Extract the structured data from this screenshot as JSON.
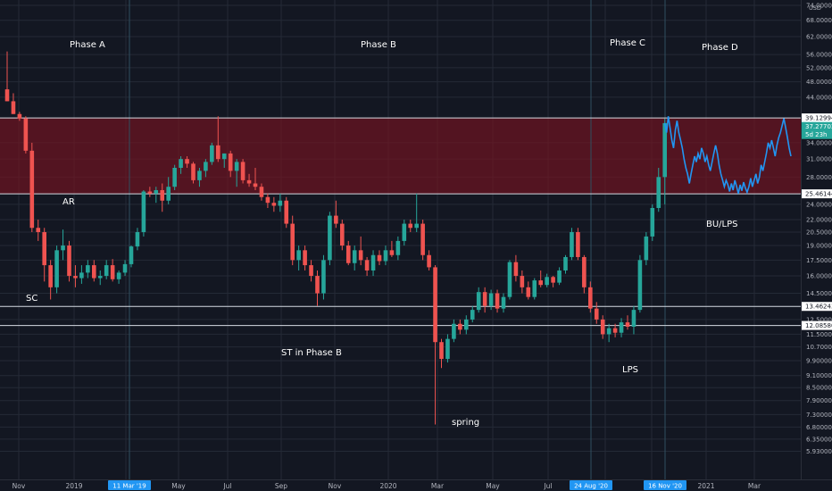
{
  "chart_data": {
    "type": "candlestick",
    "currency": "USD",
    "colors": {
      "up": "#26a69a",
      "down": "#ef5350",
      "line_series": "#2196f3",
      "resistance_zone": "#7a1420",
      "date_marker": "#2196f3"
    },
    "ylim": [
      5.4,
      74
    ],
    "y_scale": "log",
    "yticks": [
      "74.000000",
      "68.000000",
      "62.000000",
      "56.000000",
      "52.000000",
      "48.000000",
      "44.000000",
      "39.129947",
      "37.277021",
      "34.000000",
      "31.000000",
      "28.000000",
      "25.461444",
      "24.000000",
      "22.000000",
      "20.500000",
      "19.000000",
      "17.500000",
      "16.000000",
      "14.500000",
      "13.462438",
      "12.500000",
      "12.085800",
      "11.500000",
      "10.700000",
      "9.900000",
      "9.100000",
      "8.500000",
      "7.900000",
      "7.300000",
      "6.800000",
      "6.350000",
      "5.930000"
    ],
    "xticks": [
      "Nov",
      "2019",
      "Mar",
      "May",
      "Jul",
      "Sep",
      "Nov",
      "2020",
      "Mar",
      "May",
      "Jul",
      "Sep",
      "Nov",
      "2021",
      "Mar"
    ],
    "date_markers": [
      "11 Mar '19",
      "24 Aug '20",
      "16 Nov '20"
    ],
    "horizontal_levels": [
      {
        "value": 39.129947,
        "label": "39.129947"
      },
      {
        "value": 25.461444,
        "label": "25.461444"
      },
      {
        "value": 13.462438,
        "label": "13.462438"
      },
      {
        "value": 12.0858,
        "label": "12.085800"
      }
    ],
    "resistance_zone": [
      25.461444,
      39.129947
    ],
    "current_price": {
      "value": 37.277021,
      "label": "37.277021",
      "countdown": "5d 23h"
    },
    "annotations": [
      "Phase A",
      "Phase B",
      "Phase C",
      "Phase D",
      "AR",
      "SC",
      "ST in Phase B",
      "spring",
      "LPS",
      "BU/LPS"
    ],
    "candles": [
      {
        "o": 46.0,
        "h": 57.0,
        "l": 43.0,
        "c": 43.0
      },
      {
        "o": 43.0,
        "h": 45.0,
        "l": 40.0,
        "c": 40.0
      },
      {
        "o": 40.0,
        "h": 40.5,
        "l": 38.5,
        "c": 39.0
      },
      {
        "o": 39.0,
        "h": 39.5,
        "l": 32.0,
        "c": 32.5
      },
      {
        "o": 32.5,
        "h": 34.0,
        "l": 20.5,
        "c": 21.0
      },
      {
        "o": 21.0,
        "h": 22.0,
        "l": 19.5,
        "c": 20.5
      },
      {
        "o": 20.5,
        "h": 21.0,
        "l": 15.5,
        "c": 17.0
      },
      {
        "o": 17.0,
        "h": 17.5,
        "l": 14.0,
        "c": 15.0
      },
      {
        "o": 15.0,
        "h": 19.0,
        "l": 14.5,
        "c": 18.5
      },
      {
        "o": 18.5,
        "h": 20.8,
        "l": 17.5,
        "c": 19.0
      },
      {
        "o": 19.0,
        "h": 19.5,
        "l": 15.5,
        "c": 16.0
      },
      {
        "o": 16.0,
        "h": 17.0,
        "l": 15.0,
        "c": 15.8
      },
      {
        "o": 15.8,
        "h": 17.0,
        "l": 15.3,
        "c": 16.3
      },
      {
        "o": 16.3,
        "h": 17.5,
        "l": 15.8,
        "c": 17.0
      },
      {
        "o": 17.0,
        "h": 17.5,
        "l": 15.5,
        "c": 15.8
      },
      {
        "o": 15.8,
        "h": 16.5,
        "l": 15.2,
        "c": 16.0
      },
      {
        "o": 16.0,
        "h": 17.5,
        "l": 15.7,
        "c": 17.0
      },
      {
        "o": 17.0,
        "h": 17.6,
        "l": 15.5,
        "c": 15.7
      },
      {
        "o": 15.7,
        "h": 16.5,
        "l": 15.3,
        "c": 16.3
      },
      {
        "o": 16.3,
        "h": 17.5,
        "l": 16.0,
        "c": 17.1
      },
      {
        "o": 17.1,
        "h": 19.0,
        "l": 16.8,
        "c": 18.9
      },
      {
        "o": 18.9,
        "h": 21.0,
        "l": 18.5,
        "c": 20.5
      },
      {
        "o": 20.5,
        "h": 26.0,
        "l": 20.0,
        "c": 25.8
      },
      {
        "o": 25.8,
        "h": 26.5,
        "l": 25.0,
        "c": 25.5
      },
      {
        "o": 25.5,
        "h": 26.5,
        "l": 24.2,
        "c": 26.0
      },
      {
        "o": 26.0,
        "h": 27.0,
        "l": 23.0,
        "c": 24.5
      },
      {
        "o": 24.5,
        "h": 28.0,
        "l": 24.0,
        "c": 26.5
      },
      {
        "o": 26.5,
        "h": 30.0,
        "l": 26.0,
        "c": 29.5
      },
      {
        "o": 29.5,
        "h": 31.5,
        "l": 28.5,
        "c": 31.0
      },
      {
        "o": 31.0,
        "h": 31.5,
        "l": 29.5,
        "c": 30.2
      },
      {
        "o": 30.2,
        "h": 30.5,
        "l": 27.0,
        "c": 27.5
      },
      {
        "o": 27.5,
        "h": 29.5,
        "l": 26.5,
        "c": 29.0
      },
      {
        "o": 29.0,
        "h": 31.0,
        "l": 28.0,
        "c": 30.5
      },
      {
        "o": 30.5,
        "h": 34.0,
        "l": 30.0,
        "c": 33.5
      },
      {
        "o": 33.5,
        "h": 39.5,
        "l": 30.5,
        "c": 31.0
      },
      {
        "o": 31.0,
        "h": 32.0,
        "l": 29.5,
        "c": 32.0
      },
      {
        "o": 32.0,
        "h": 32.5,
        "l": 28.0,
        "c": 29.0
      },
      {
        "o": 29.0,
        "h": 31.0,
        "l": 26.5,
        "c": 30.5
      },
      {
        "o": 30.5,
        "h": 31.0,
        "l": 27.0,
        "c": 27.5
      },
      {
        "o": 27.5,
        "h": 28.5,
        "l": 26.5,
        "c": 27.0
      },
      {
        "o": 27.0,
        "h": 29.5,
        "l": 26.0,
        "c": 26.5
      },
      {
        "o": 26.5,
        "h": 27.0,
        "l": 24.5,
        "c": 25.0
      },
      {
        "o": 25.0,
        "h": 25.5,
        "l": 23.5,
        "c": 24.2
      },
      {
        "o": 24.2,
        "h": 25.0,
        "l": 23.0,
        "c": 23.8
      },
      {
        "o": 23.8,
        "h": 25.5,
        "l": 23.0,
        "c": 24.5
      },
      {
        "o": 24.5,
        "h": 25.0,
        "l": 21.0,
        "c": 21.5
      },
      {
        "o": 21.5,
        "h": 22.5,
        "l": 17.0,
        "c": 17.5
      },
      {
        "o": 17.5,
        "h": 19.0,
        "l": 16.5,
        "c": 18.5
      },
      {
        "o": 18.5,
        "h": 19.0,
        "l": 16.5,
        "c": 17.0
      },
      {
        "o": 17.0,
        "h": 17.5,
        "l": 15.5,
        "c": 16.0
      },
      {
        "o": 16.0,
        "h": 16.5,
        "l": 13.5,
        "c": 14.5
      },
      {
        "o": 14.5,
        "h": 18.0,
        "l": 14.0,
        "c": 17.5
      },
      {
        "o": 17.5,
        "h": 23.0,
        "l": 17.0,
        "c": 22.5
      },
      {
        "o": 22.5,
        "h": 24.5,
        "l": 21.0,
        "c": 21.5
      },
      {
        "o": 21.5,
        "h": 22.0,
        "l": 18.5,
        "c": 19.0
      },
      {
        "o": 19.0,
        "h": 19.5,
        "l": 17.0,
        "c": 17.2
      },
      {
        "o": 17.2,
        "h": 19.0,
        "l": 16.5,
        "c": 18.5
      },
      {
        "o": 18.5,
        "h": 20.0,
        "l": 17.0,
        "c": 17.5
      },
      {
        "o": 17.5,
        "h": 17.8,
        "l": 16.0,
        "c": 16.5
      },
      {
        "o": 16.5,
        "h": 18.5,
        "l": 16.0,
        "c": 18.0
      },
      {
        "o": 18.0,
        "h": 18.5,
        "l": 17.0,
        "c": 17.4
      },
      {
        "o": 17.4,
        "h": 19.0,
        "l": 17.0,
        "c": 18.5
      },
      {
        "o": 18.5,
        "h": 19.5,
        "l": 17.8,
        "c": 18.0
      },
      {
        "o": 18.0,
        "h": 20.0,
        "l": 17.5,
        "c": 19.5
      },
      {
        "o": 19.5,
        "h": 22.0,
        "l": 19.0,
        "c": 21.5
      },
      {
        "o": 21.5,
        "h": 22.0,
        "l": 20.5,
        "c": 21.0
      },
      {
        "o": 21.0,
        "h": 25.5,
        "l": 20.5,
        "c": 21.5
      },
      {
        "o": 21.5,
        "h": 22.0,
        "l": 17.5,
        "c": 18.0
      },
      {
        "o": 18.0,
        "h": 18.5,
        "l": 16.5,
        "c": 16.8
      },
      {
        "o": 16.8,
        "h": 17.0,
        "l": 6.9,
        "c": 11.0
      },
      {
        "o": 11.0,
        "h": 11.2,
        "l": 9.5,
        "c": 10.0
      },
      {
        "o": 10.0,
        "h": 11.5,
        "l": 9.8,
        "c": 11.2
      },
      {
        "o": 11.2,
        "h": 12.5,
        "l": 11.0,
        "c": 12.2
      },
      {
        "o": 12.2,
        "h": 12.5,
        "l": 11.5,
        "c": 11.8
      },
      {
        "o": 11.8,
        "h": 12.8,
        "l": 11.5,
        "c": 12.5
      },
      {
        "o": 12.5,
        "h": 13.5,
        "l": 12.3,
        "c": 13.2
      },
      {
        "o": 13.2,
        "h": 15.0,
        "l": 13.0,
        "c": 14.6
      },
      {
        "o": 14.6,
        "h": 15.0,
        "l": 13.0,
        "c": 13.5
      },
      {
        "o": 13.5,
        "h": 14.8,
        "l": 13.2,
        "c": 14.5
      },
      {
        "o": 14.5,
        "h": 14.8,
        "l": 13.0,
        "c": 13.3
      },
      {
        "o": 13.3,
        "h": 14.5,
        "l": 13.0,
        "c": 14.2
      },
      {
        "o": 14.2,
        "h": 17.5,
        "l": 14.0,
        "c": 17.3
      },
      {
        "o": 17.3,
        "h": 18.0,
        "l": 15.5,
        "c": 16.0
      },
      {
        "o": 16.0,
        "h": 16.5,
        "l": 14.5,
        "c": 15.0
      },
      {
        "o": 15.0,
        "h": 15.5,
        "l": 14.0,
        "c": 14.2
      },
      {
        "o": 14.2,
        "h": 15.8,
        "l": 14.0,
        "c": 15.6
      },
      {
        "o": 15.6,
        "h": 16.5,
        "l": 15.0,
        "c": 15.2
      },
      {
        "o": 15.2,
        "h": 16.2,
        "l": 15.0,
        "c": 15.9
      },
      {
        "o": 15.9,
        "h": 16.0,
        "l": 15.0,
        "c": 15.4
      },
      {
        "o": 15.4,
        "h": 16.8,
        "l": 15.2,
        "c": 16.5
      },
      {
        "o": 16.5,
        "h": 18.0,
        "l": 16.2,
        "c": 17.8
      },
      {
        "o": 17.8,
        "h": 21.0,
        "l": 17.5,
        "c": 20.5
      },
      {
        "o": 20.5,
        "h": 21.0,
        "l": 17.5,
        "c": 17.8
      },
      {
        "o": 17.8,
        "h": 18.0,
        "l": 14.5,
        "c": 15.0
      },
      {
        "o": 15.0,
        "h": 15.5,
        "l": 13.0,
        "c": 13.3
      },
      {
        "o": 13.3,
        "h": 13.8,
        "l": 12.2,
        "c": 12.5
      },
      {
        "o": 12.5,
        "h": 12.8,
        "l": 11.2,
        "c": 11.5
      },
      {
        "o": 11.5,
        "h": 12.2,
        "l": 11.0,
        "c": 11.9
      },
      {
        "o": 11.9,
        "h": 12.2,
        "l": 11.3,
        "c": 11.6
      },
      {
        "o": 11.6,
        "h": 12.6,
        "l": 11.3,
        "c": 12.3
      },
      {
        "o": 12.3,
        "h": 12.8,
        "l": 11.8,
        "c": 12.0
      },
      {
        "o": 12.0,
        "h": 13.5,
        "l": 11.5,
        "c": 13.2
      },
      {
        "o": 13.2,
        "h": 18.0,
        "l": 13.0,
        "c": 17.5
      },
      {
        "o": 17.5,
        "h": 20.5,
        "l": 17.0,
        "c": 20.0
      },
      {
        "o": 20.0,
        "h": 24.0,
        "l": 19.5,
        "c": 23.5
      },
      {
        "o": 23.5,
        "h": 29.5,
        "l": 23.0,
        "c": 28.0
      },
      {
        "o": 28.0,
        "h": 39.0,
        "l": 24.0,
        "c": 38.0
      }
    ],
    "line_series": [
      38.0,
      36.0,
      39.5,
      37.0,
      34.5,
      33.0,
      36.5,
      38.5,
      36.0,
      34.5,
      33.0,
      31.0,
      29.5,
      28.5,
      27.0,
      28.5,
      30.0,
      31.5,
      30.5,
      32.0,
      31.0,
      33.0,
      32.0,
      30.5,
      31.5,
      30.0,
      29.0,
      30.5,
      32.0,
      33.5,
      32.0,
      30.0,
      28.5,
      27.5,
      26.5,
      27.5,
      26.8,
      25.8,
      27.0,
      26.0,
      27.5,
      26.5,
      25.5,
      26.8,
      25.9,
      27.2,
      26.3,
      25.7,
      26.5,
      27.8,
      26.5,
      27.5,
      28.5,
      27.0,
      28.0,
      30.0,
      29.0,
      30.5,
      32.0,
      34.0,
      33.0,
      34.5,
      33.0,
      31.5,
      33.5,
      35.0,
      36.0,
      37.5,
      39.0,
      37.0,
      35.0,
      33.0,
      31.5
    ]
  }
}
